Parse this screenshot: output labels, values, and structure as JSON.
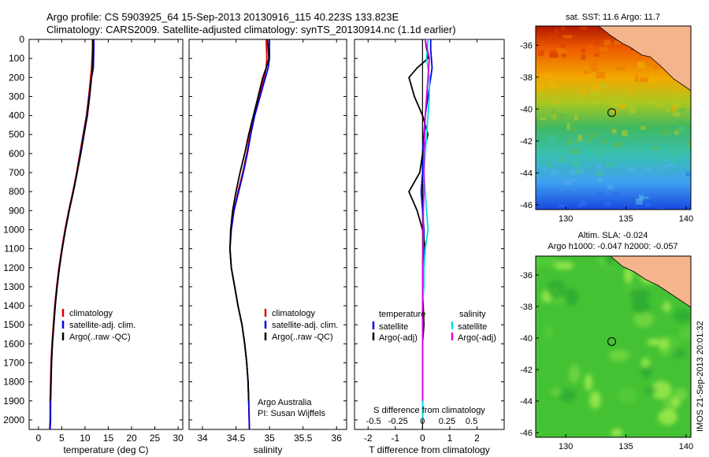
{
  "header": {
    "title_line1": "Argo profile: CS 5903925_64 15-Sep-2013 20130916_115 40.223S 133.823E",
    "title_line2": "Climatology: CARS2009. Satellite-adjusted climatology: synTS_20130914.nc (1.1d earlier)"
  },
  "colors": {
    "climatology": "#e00000",
    "satellite": "#0000e0",
    "argo": "#000000",
    "sat_salinity": "#00e0e0",
    "argo_salinity_adj": "#e000e0",
    "land": "#f4b48c",
    "sla_bg": "#44c234"
  },
  "side_label": "IMOS 21-Sep-2013 20:01:32",
  "chart_data": [
    {
      "type": "line",
      "id": "temperature",
      "xlabel": "temperature (deg C)",
      "ylabel": "",
      "xlim": [
        -2,
        31
      ],
      "xticks": [
        0,
        5,
        10,
        15,
        20,
        25,
        30
      ],
      "ylim": [
        0,
        2050
      ],
      "yticks": [
        0,
        100,
        200,
        300,
        400,
        500,
        600,
        700,
        800,
        900,
        1000,
        1100,
        1200,
        1300,
        1400,
        1500,
        1600,
        1700,
        1800,
        1900,
        2000
      ],
      "legend": [
        "climatology",
        "satellite-adj. clim.",
        "Argo(..raw -QC)"
      ],
      "legend_location": "lower-center",
      "series": [
        {
          "name": "climatology",
          "x": [
            11.6,
            11.6,
            11.4,
            11.2,
            10.8,
            10.3,
            9.6,
            8.9,
            8.2,
            7.4,
            6.5,
            5.7,
            5.0,
            4.4,
            3.9,
            3.5,
            3.2,
            2.9,
            2.7,
            2.6,
            2.5,
            2.5,
            2.4
          ],
          "y": [
            0,
            50,
            150,
            200,
            300,
            400,
            500,
            600,
            700,
            800,
            900,
            1000,
            1100,
            1200,
            1300,
            1400,
            1500,
            1600,
            1700,
            1800,
            1900,
            2000,
            2050
          ]
        },
        {
          "name": "satellite-adj. clim.",
          "x": [
            11.9,
            11.9,
            11.8,
            11.4,
            10.9,
            10.4,
            9.7,
            9.0,
            8.3,
            7.5,
            6.6,
            5.8,
            5.1,
            4.5,
            4.0,
            3.6,
            3.3,
            3.0,
            2.8,
            2.7,
            2.6,
            2.6,
            2.5
          ],
          "y": [
            0,
            50,
            150,
            200,
            300,
            400,
            500,
            600,
            700,
            800,
            900,
            1000,
            1100,
            1200,
            1300,
            1400,
            1500,
            1600,
            1700,
            1800,
            1900,
            2000,
            2050
          ]
        },
        {
          "name": "Argo(..raw -QC)",
          "x": [
            11.7,
            11.7,
            11.6,
            11.4,
            11.0,
            10.5,
            9.8,
            9.1,
            8.3,
            7.5,
            6.6,
            5.8,
            5.1,
            4.5,
            4.0,
            3.6,
            3.3,
            3.0,
            2.8,
            2.7,
            2.6
          ],
          "y": [
            0,
            50,
            150,
            200,
            300,
            400,
            500,
            600,
            700,
            800,
            900,
            1000,
            1100,
            1200,
            1300,
            1400,
            1500,
            1600,
            1700,
            1800,
            1900
          ]
        }
      ]
    },
    {
      "type": "line",
      "id": "salinity",
      "xlabel": "salinity",
      "xlim": [
        33.8,
        36.15
      ],
      "xticks": [
        34,
        34.5,
        35,
        35.5,
        36
      ],
      "ylim": [
        0,
        2050
      ],
      "legend": [
        "climatology",
        "satellite-adj. clim.",
        "Argo(..raw -QC)"
      ],
      "legend_location": "lower-right",
      "annotation": [
        "Argo Australia",
        "PI: Susan Wijffels"
      ],
      "series": [
        {
          "name": "climatology",
          "x": [
            34.95,
            34.96,
            34.95,
            34.92,
            34.85,
            34.77,
            34.71,
            34.66,
            34.6,
            34.53,
            34.47,
            34.43,
            34.41,
            34.43,
            34.48,
            34.53,
            34.59,
            34.63,
            34.66,
            34.68,
            34.69,
            34.7
          ],
          "y": [
            0,
            100,
            150,
            200,
            300,
            400,
            500,
            600,
            700,
            800,
            900,
            1000,
            1100,
            1200,
            1300,
            1400,
            1500,
            1600,
            1700,
            1800,
            1900,
            2050
          ]
        },
        {
          "name": "satellite-adj. clim.",
          "x": [
            35.0,
            35.0,
            34.98,
            34.94,
            34.86,
            34.78,
            34.72,
            34.67,
            34.61,
            34.54,
            34.47,
            34.43,
            34.41,
            34.43,
            34.48,
            34.53,
            34.59,
            34.63,
            34.66,
            34.68,
            34.69,
            34.7
          ],
          "y": [
            0,
            100,
            150,
            200,
            300,
            400,
            500,
            600,
            700,
            800,
            900,
            1000,
            1100,
            1200,
            1300,
            1400,
            1500,
            1600,
            1700,
            1800,
            1900,
            2050
          ]
        },
        {
          "name": "Argo(..raw -QC)",
          "x": [
            34.97,
            34.99,
            34.95,
            34.9,
            34.83,
            34.76,
            34.69,
            34.63,
            34.56,
            34.5,
            34.45,
            34.42,
            34.41,
            34.43,
            34.48,
            34.53,
            34.59,
            34.63,
            34.66,
            34.68,
            34.69
          ],
          "y": [
            0,
            100,
            150,
            200,
            300,
            400,
            500,
            600,
            700,
            800,
            900,
            1000,
            1100,
            1200,
            1300,
            1400,
            1500,
            1600,
            1700,
            1800,
            1900
          ]
        }
      ]
    },
    {
      "type": "line",
      "id": "difference",
      "xlabel": "T difference from climatology",
      "top_axis_label": "S difference from climatology",
      "xlim": [
        -2.5,
        3
      ],
      "xticks": [
        -2,
        -1,
        0,
        1,
        2
      ],
      "top_tick_labels": [
        "-0.5",
        "-0.25",
        "0",
        "0.25",
        "0.5"
      ],
      "ylim": [
        0,
        2050
      ],
      "legend": [
        "temperature",
        "satellite",
        "Argo(-adj)",
        "salinity",
        "satellite",
        "Argo(-adj)"
      ],
      "legend_location": "lower-center",
      "series": [
        {
          "name": "temperature satellite",
          "x": [
            0.3,
            0.3,
            0.35,
            0.2,
            0.1,
            0.05,
            0.0,
            0.0,
            -0.05,
            0.0,
            0.05,
            0.05,
            0.0,
            0.0,
            0.0,
            0.0,
            0.0,
            0.0,
            0.0,
            0.0
          ],
          "y": [
            0,
            50,
            150,
            300,
            400,
            500,
            600,
            700,
            800,
            900,
            1000,
            1100,
            1200,
            1300,
            1400,
            1500,
            1600,
            1700,
            1800,
            2000
          ]
        },
        {
          "name": "temperature Argo(-adj)",
          "x": [
            0.1,
            0.2,
            -0.2,
            -0.5,
            -0.3,
            0.0,
            0.2,
            0.0,
            -0.1,
            -0.5,
            -0.2,
            0.0,
            0.1,
            0.05,
            0.0,
            0.05,
            0.0,
            0.0,
            0.0
          ],
          "y": [
            0,
            100,
            150,
            200,
            300,
            400,
            500,
            600,
            700,
            800,
            900,
            1000,
            1100,
            1200,
            1300,
            1500,
            1600,
            1700,
            1900
          ]
        },
        {
          "name": "salinity satellite",
          "x": [
            0.2,
            0.15,
            0.25,
            0.25,
            0.2,
            0.15,
            0.1,
            0.05,
            0.1,
            0.15,
            0.2,
            0.1,
            0.05,
            0.05,
            0.0,
            0.0,
            0.0,
            0.0,
            0.0
          ],
          "y": [
            0,
            100,
            200,
            300,
            400,
            500,
            600,
            700,
            800,
            900,
            1000,
            1100,
            1200,
            1300,
            1400,
            1500,
            1600,
            1700,
            2000
          ]
        },
        {
          "name": "salinity Argo(-adj)",
          "x": [
            0.1,
            0.25,
            0.2,
            0.15,
            0.1,
            0.08,
            0.05,
            0.05,
            0.05,
            0.03,
            0.02,
            0.02,
            0.0,
            0.0,
            0.0,
            0.0,
            0.0,
            0.0
          ],
          "y": [
            0,
            100,
            200,
            300,
            400,
            500,
            600,
            700,
            800,
            900,
            1000,
            1100,
            1200,
            1300,
            1400,
            1500,
            1700,
            1900
          ]
        }
      ]
    },
    {
      "type": "heatmap",
      "id": "sst_map",
      "title": "sat. SST: 11.6 Argo: 11.7",
      "xlim": [
        127.5,
        140.4
      ],
      "ylim": [
        -46.3,
        -34.8
      ],
      "xticks": [
        130,
        135,
        140
      ],
      "yticks": [
        -36,
        -38,
        -40,
        -42,
        -44,
        -46
      ],
      "marker": {
        "lon": 133.823,
        "lat": -40.223
      }
    },
    {
      "type": "heatmap",
      "id": "sla_map",
      "title": "Altim. SLA: -0.024",
      "subtitle": "Argo h1000: -0.047 h2000: -0.057",
      "xlim": [
        127.5,
        140.4
      ],
      "ylim": [
        -46.3,
        -34.8
      ],
      "xticks": [
        130,
        135,
        140
      ],
      "yticks": [
        -36,
        -38,
        -40,
        -42,
        -44,
        -46
      ],
      "marker": {
        "lon": 133.823,
        "lat": -40.223
      }
    }
  ]
}
